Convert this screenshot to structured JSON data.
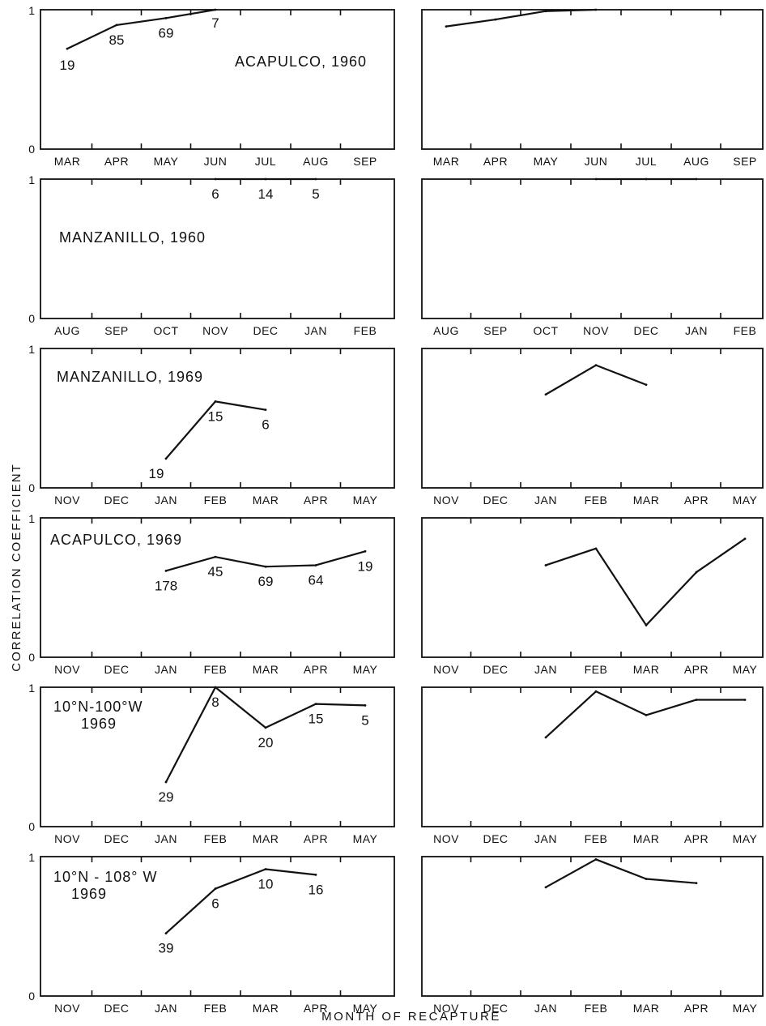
{
  "figure": {
    "y_axis_label": "CORRELATION COEFFICIENT",
    "x_axis_label": "MONTH OF RECAPTURE"
  },
  "chart_data": [
    {
      "type": "line",
      "title": "ACAPULCO, 1960",
      "categories": [
        "MAR",
        "APR",
        "MAY",
        "JUN",
        "JUL",
        "AUG",
        "SEP"
      ],
      "ylim": [
        0,
        1
      ],
      "yticks": [
        "0",
        "1"
      ],
      "left": {
        "values": [
          0.72,
          0.89,
          0.94,
          1.0,
          null,
          null,
          null
        ],
        "labels": [
          "19",
          "85",
          "69",
          "7",
          null,
          null,
          null
        ]
      },
      "right": {
        "values": [
          0.88,
          0.93,
          0.99,
          1.0,
          null,
          null,
          null
        ]
      }
    },
    {
      "type": "line",
      "title": "MANZANILLO, 1960",
      "categories": [
        "AUG",
        "SEP",
        "OCT",
        "NOV",
        "DEC",
        "JAN",
        "FEB"
      ],
      "ylim": [
        0,
        1
      ],
      "yticks": [
        "0",
        "1"
      ],
      "left": {
        "values": [
          null,
          null,
          null,
          1.0,
          1.0,
          1.0,
          null
        ],
        "labels": [
          null,
          null,
          null,
          "6",
          "14",
          "5",
          null
        ]
      },
      "right": {
        "values": [
          null,
          null,
          null,
          1.0,
          1.0,
          1.0,
          null
        ]
      }
    },
    {
      "type": "line",
      "title": "MANZANILLO, 1969",
      "categories": [
        "NOV",
        "DEC",
        "JAN",
        "FEB",
        "MAR",
        "APR",
        "MAY"
      ],
      "ylim": [
        0,
        1
      ],
      "yticks": [
        "0",
        "1"
      ],
      "left": {
        "values": [
          null,
          null,
          0.21,
          0.62,
          0.56,
          null,
          null
        ],
        "labels": [
          null,
          null,
          "19",
          "15",
          "6",
          null,
          null
        ]
      },
      "right": {
        "values": [
          null,
          null,
          0.67,
          0.88,
          0.74,
          null,
          null
        ]
      }
    },
    {
      "type": "line",
      "title": "ACAPULCO, 1969",
      "categories": [
        "NOV",
        "DEC",
        "JAN",
        "FEB",
        "MAR",
        "APR",
        "MAY"
      ],
      "ylim": [
        0,
        1
      ],
      "yticks": [
        "0",
        "1"
      ],
      "left": {
        "values": [
          null,
          null,
          0.62,
          0.72,
          0.65,
          0.66,
          0.76
        ],
        "labels": [
          null,
          null,
          "178",
          "45",
          "69",
          "64",
          "19"
        ]
      },
      "right": {
        "values": [
          null,
          null,
          0.66,
          0.78,
          0.23,
          0.61,
          0.85
        ]
      }
    },
    {
      "type": "line",
      "title": "10°N-100°W\n1969",
      "categories": [
        "NOV",
        "DEC",
        "JAN",
        "FEB",
        "MAR",
        "APR",
        "MAY"
      ],
      "ylim": [
        0,
        1
      ],
      "yticks": [
        "0",
        "1"
      ],
      "left": {
        "values": [
          null,
          null,
          0.32,
          1.0,
          0.71,
          0.88,
          0.87
        ],
        "labels": [
          null,
          null,
          "29",
          "8",
          "20",
          "15",
          "5"
        ]
      },
      "right": {
        "values": [
          null,
          null,
          0.64,
          0.97,
          0.8,
          0.91,
          0.91
        ]
      }
    },
    {
      "type": "line",
      "title": "10°N - 108° W\n1969",
      "categories": [
        "NOV",
        "DEC",
        "JAN",
        "FEB",
        "MAR",
        "APR",
        "MAY"
      ],
      "ylim": [
        0,
        1
      ],
      "yticks": [
        "0",
        "1"
      ],
      "left": {
        "values": [
          null,
          null,
          0.45,
          0.77,
          0.91,
          0.87,
          null
        ],
        "labels": [
          null,
          null,
          "39",
          "6",
          "10",
          "16",
          null
        ]
      },
      "right": {
        "values": [
          null,
          null,
          0.78,
          0.98,
          0.84,
          0.81,
          null
        ]
      }
    }
  ]
}
